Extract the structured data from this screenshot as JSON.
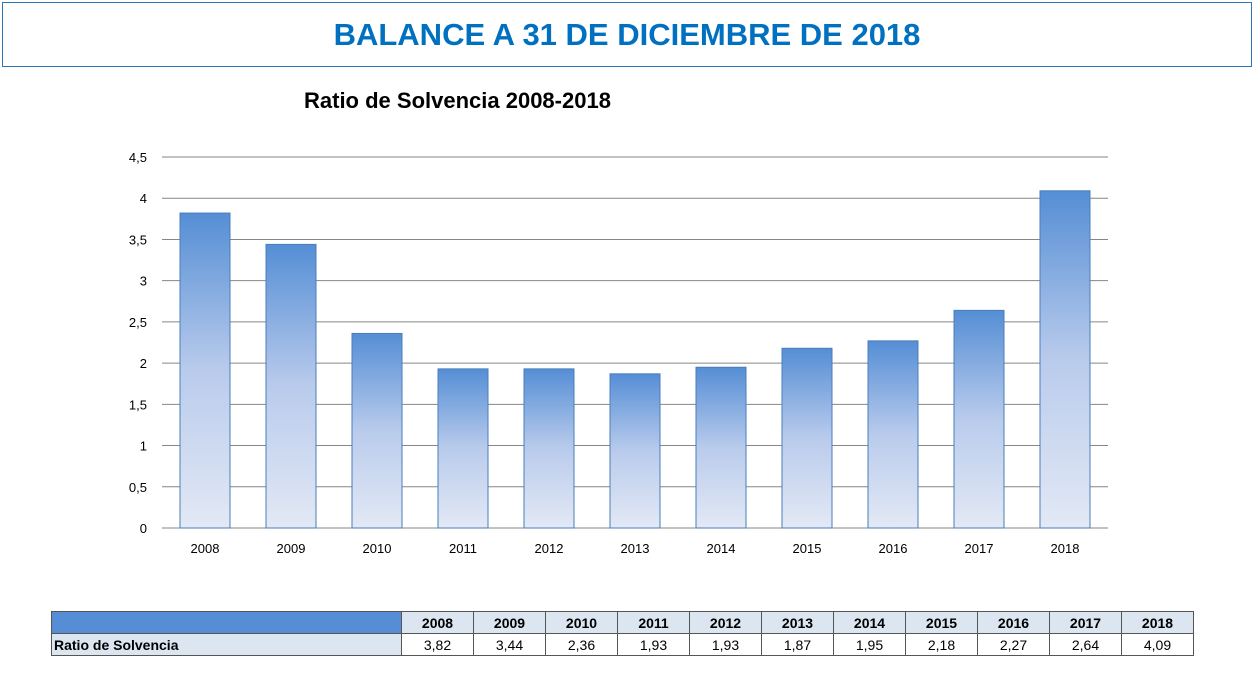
{
  "header": {
    "title": "BALANCE A 31 DE DICIEMBRE DE 2018"
  },
  "chart_data": {
    "type": "bar",
    "title": "Ratio de Solvencia 2008-2018",
    "categories": [
      "2008",
      "2009",
      "2010",
      "2011",
      "2012",
      "2013",
      "2014",
      "2015",
      "2016",
      "2017",
      "2018"
    ],
    "values": [
      3.82,
      3.44,
      2.36,
      1.93,
      1.93,
      1.87,
      1.95,
      2.18,
      2.27,
      2.64,
      4.09
    ],
    "ylim": [
      0,
      4.5
    ],
    "yticks": [
      "0",
      "0,5",
      "1",
      "1,5",
      "2",
      "2,5",
      "3",
      "3,5",
      "4",
      "4,5"
    ],
    "grid": true,
    "xlabel": "",
    "ylabel": "",
    "bar_color": "#558ed5"
  },
  "table": {
    "row_label": "Ratio de Solvencia",
    "headers": [
      "2008",
      "2009",
      "2010",
      "2011",
      "2012",
      "2013",
      "2014",
      "2015",
      "2016",
      "2017",
      "2018"
    ],
    "values": [
      "3,82",
      "3,44",
      "2,36",
      "1,93",
      "1,93",
      "1,87",
      "1,95",
      "2,18",
      "2,27",
      "2,64",
      "4,09"
    ]
  }
}
